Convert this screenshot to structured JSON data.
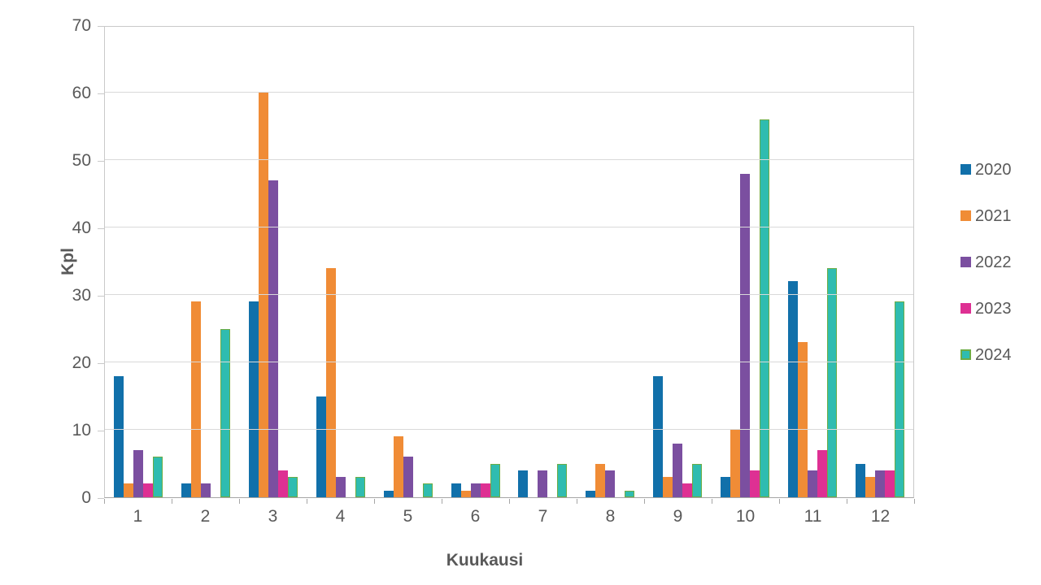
{
  "chart_data": {
    "type": "bar",
    "title": "",
    "xlabel": "Kuukausi",
    "ylabel": "Kpl",
    "categories": [
      "1",
      "2",
      "3",
      "4",
      "5",
      "6",
      "7",
      "8",
      "9",
      "10",
      "11",
      "12"
    ],
    "series": [
      {
        "name": "2020",
        "color": "#1170aa",
        "values": [
          18,
          2,
          29,
          15,
          1,
          2,
          4,
          1,
          18,
          3,
          32,
          5
        ]
      },
      {
        "name": "2021",
        "color": "#f08c36",
        "values": [
          2,
          29,
          60,
          34,
          9,
          1,
          0,
          5,
          3,
          10,
          23,
          3
        ]
      },
      {
        "name": "2022",
        "color": "#7b4fa0",
        "values": [
          7,
          2,
          47,
          3,
          6,
          2,
          4,
          4,
          8,
          48,
          4,
          4
        ]
      },
      {
        "name": "2023",
        "color": "#de3093",
        "values": [
          2,
          0,
          4,
          0,
          0,
          2,
          0,
          0,
          2,
          4,
          7,
          4
        ]
      },
      {
        "name": "2024",
        "color": "#2fbcb0",
        "border_color": "#6cac44",
        "values": [
          6,
          25,
          3,
          3,
          2,
          5,
          5,
          1,
          5,
          56,
          34,
          29
        ]
      }
    ],
    "ylim": [
      0,
      70
    ],
    "ytick_step": 10,
    "y_tick_labels": [
      "0",
      "10",
      "20",
      "30",
      "40",
      "50",
      "60",
      "70"
    ],
    "grid": "horizontal",
    "legend_position": "right",
    "legend_labels": [
      "2020",
      "2021",
      "2022",
      "2023",
      "2024"
    ],
    "gridline_color": "#d9d9d9",
    "axis_text_color": "#595959"
  }
}
